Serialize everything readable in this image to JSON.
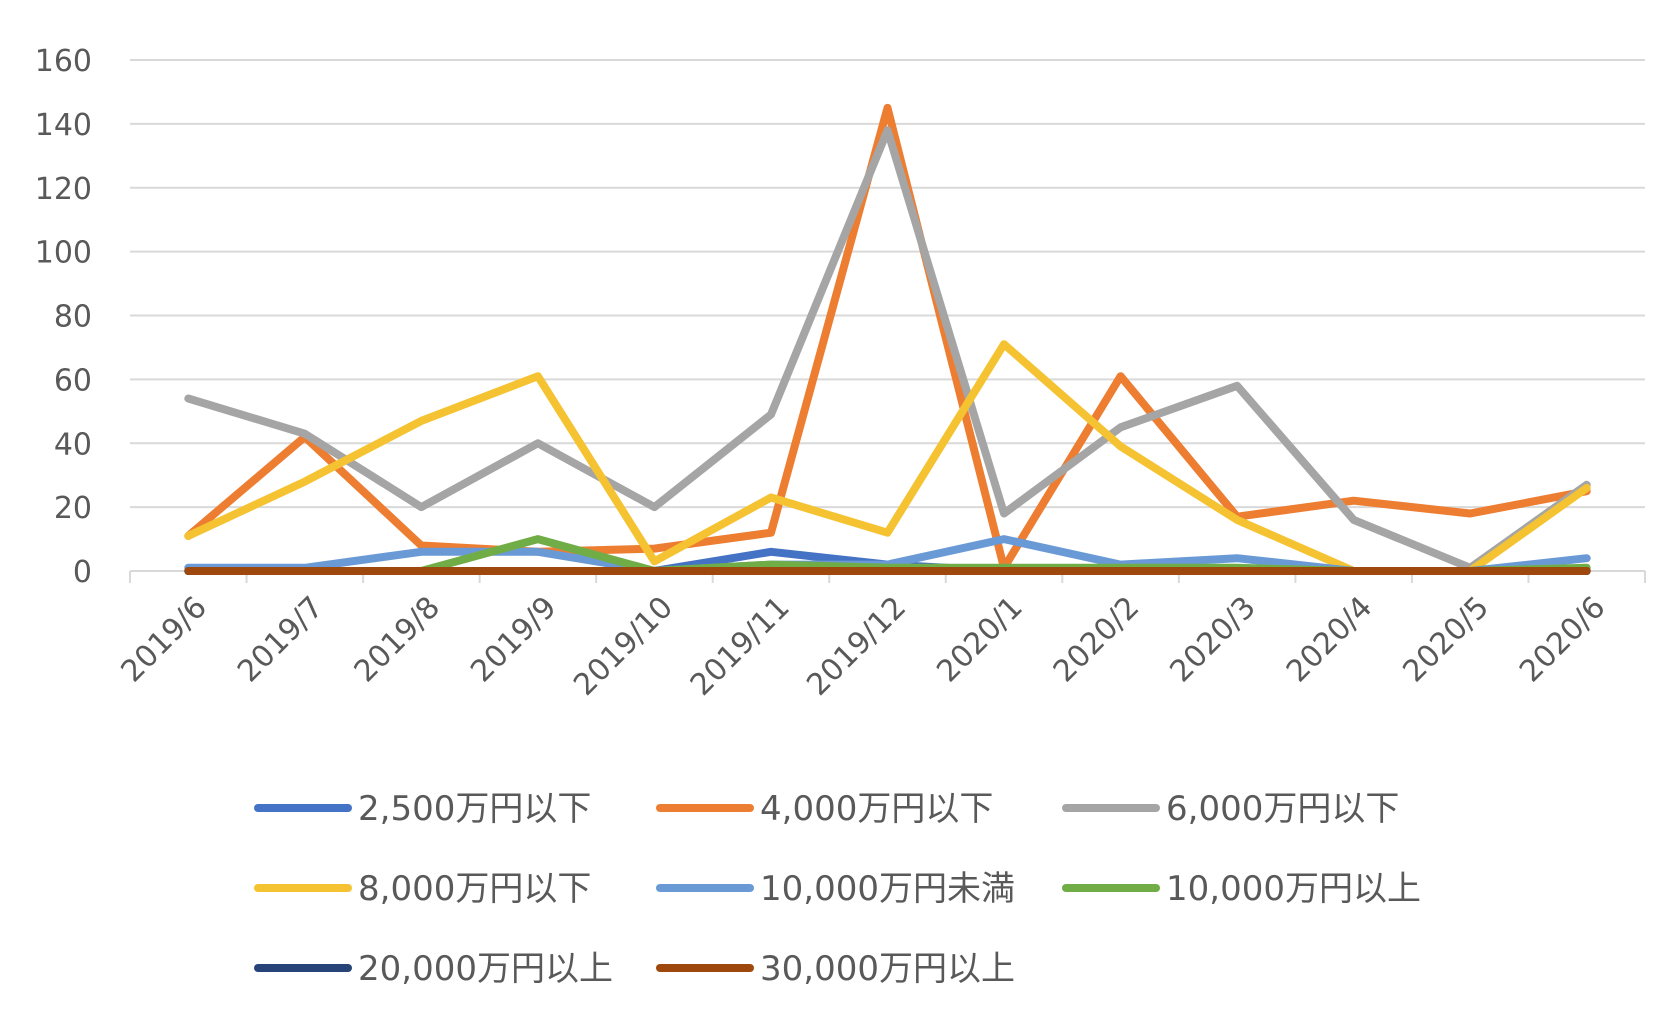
{
  "chart_data": {
    "type": "line",
    "title": "",
    "xlabel": "",
    "ylabel": "",
    "ylim": [
      0,
      160
    ],
    "yticks": [
      0,
      20,
      40,
      60,
      80,
      100,
      120,
      140,
      160
    ],
    "grid": true,
    "legend_position": "bottom",
    "categories": [
      "2019/6",
      "2019/7",
      "2019/8",
      "2019/9",
      "2019/10",
      "2019/11",
      "2019/12",
      "2020/1",
      "2020/2",
      "2020/3",
      "2020/4",
      "2020/5",
      "2020/6"
    ],
    "series": [
      {
        "name": "2,500万円以下",
        "color": "#4472C4",
        "values": [
          0,
          0,
          0,
          0,
          0,
          6,
          2,
          0,
          0,
          0,
          0,
          0,
          0
        ]
      },
      {
        "name": "4,000万円以下",
        "color": "#ED7D31",
        "values": [
          11,
          42,
          8,
          6,
          7,
          12,
          145,
          1,
          61,
          17,
          22,
          18,
          25
        ]
      },
      {
        "name": "6,000万円以下",
        "color": "#A5A5A5",
        "values": [
          54,
          43,
          20,
          40,
          20,
          49,
          138,
          18,
          45,
          58,
          16,
          1,
          27
        ]
      },
      {
        "name": "8,000万円以下",
        "color": "#F5C332",
        "values": [
          11,
          28,
          47,
          61,
          3,
          23,
          12,
          71,
          39,
          16,
          0,
          0,
          26
        ]
      },
      {
        "name": "10,000万円未満",
        "color": "#6A9AD6",
        "values": [
          1,
          1,
          6,
          6,
          0,
          2,
          2,
          10,
          2,
          4,
          0,
          0,
          4
        ]
      },
      {
        "name": "10,000万円以上",
        "color": "#70AD47",
        "values": [
          0,
          0,
          0,
          10,
          0,
          2,
          1,
          1,
          1,
          1,
          0,
          0,
          1
        ]
      },
      {
        "name": "20,000万円以上",
        "color": "#264478",
        "values": [
          0,
          0,
          0,
          0,
          0,
          0,
          0,
          0,
          0,
          0,
          0,
          0,
          0
        ]
      },
      {
        "name": "30,000万円以上",
        "color": "#9E480E",
        "values": [
          0,
          0,
          0,
          0,
          0,
          0,
          0,
          0,
          0,
          0,
          0,
          0,
          0
        ]
      }
    ]
  }
}
